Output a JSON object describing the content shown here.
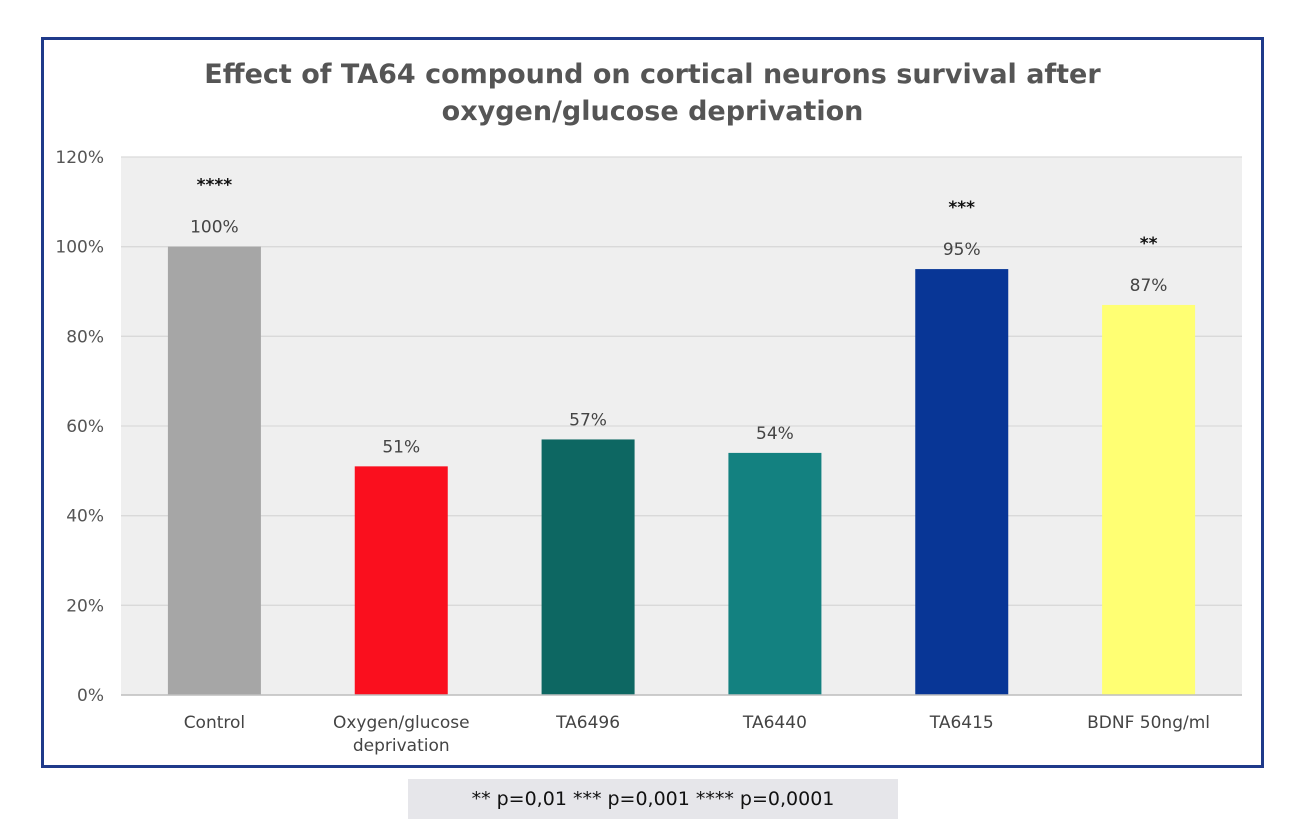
{
  "chart_data": {
    "type": "bar",
    "title": "Effect of TA64 compound on cortical neurons survival after oxygen/glucose deprivation",
    "title_lines": [
      "Effect of TA64 compound on cortical neurons survival after",
      "oxygen/glucose deprivation"
    ],
    "xlabel": "",
    "ylabel": "",
    "categories": [
      [
        "Control"
      ],
      [
        "Oxygen/glucose",
        "deprivation"
      ],
      [
        "TA6496"
      ],
      [
        "TA6440"
      ],
      [
        "TA6415"
      ],
      [
        "BDNF 50ng/ml"
      ]
    ],
    "values": [
      100,
      51,
      57,
      54,
      95,
      87
    ],
    "data_labels": [
      "100%",
      "51%",
      "57%",
      "54%",
      "95%",
      "87%"
    ],
    "significance": [
      "****",
      "",
      "",
      "",
      "***",
      "**"
    ],
    "colors": [
      "#a6a6a6",
      "#fa0f1e",
      "#0d6762",
      "#138180",
      "#083696",
      "#ffff73"
    ],
    "ylim": [
      0,
      120
    ],
    "yticks": [
      0,
      20,
      40,
      60,
      80,
      100,
      120
    ],
    "ytick_labels": [
      "0%",
      "20%",
      "40%",
      "60%",
      "80%",
      "100%",
      "120%"
    ],
    "grid": true,
    "legend": "none",
    "plot_background": "#efefef",
    "gridline_color": "#d9d9d9",
    "frame_color": "#1f3a8a"
  },
  "footnote": "** p=0,01  *** p=0,001  **** p=0,0001"
}
